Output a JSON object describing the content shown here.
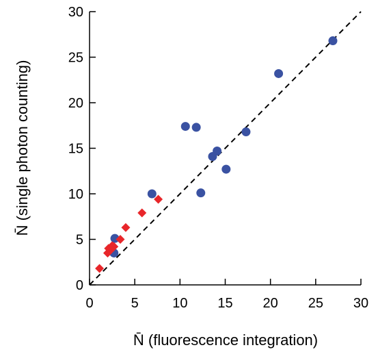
{
  "chart_data": {
    "type": "scatter",
    "xlabel": "N̄ (fluorescence integration)",
    "ylabel": "N̄ (single photon counting)",
    "xlim": [
      0,
      30
    ],
    "ylim": [
      0,
      30
    ],
    "xticks": [
      0,
      5,
      10,
      15,
      20,
      25,
      30
    ],
    "yticks": [
      0,
      5,
      10,
      15,
      20,
      25,
      30
    ],
    "grid": false,
    "reference_line": {
      "type": "y=x",
      "style": "dashed",
      "color": "#000000"
    },
    "series": [
      {
        "marker": "circle",
        "color": "#3a52a2",
        "points": [
          [
            2.7,
            3.5
          ],
          [
            2.8,
            5.1
          ],
          [
            6.9,
            10.0
          ],
          [
            10.6,
            17.4
          ],
          [
            11.8,
            17.3
          ],
          [
            12.3,
            10.1
          ],
          [
            13.6,
            14.1
          ],
          [
            14.1,
            14.7
          ],
          [
            15.1,
            12.7
          ],
          [
            17.3,
            16.8
          ],
          [
            20.9,
            23.2
          ],
          [
            26.9,
            26.8
          ]
        ]
      },
      {
        "marker": "diamond",
        "color": "#e8262a",
        "points": [
          [
            1.1,
            1.8
          ],
          [
            2.0,
            3.5
          ],
          [
            2.1,
            4.0
          ],
          [
            2.3,
            3.8
          ],
          [
            2.5,
            4.3
          ],
          [
            2.7,
            4.2
          ],
          [
            3.4,
            5.0
          ],
          [
            4.0,
            6.3
          ],
          [
            5.8,
            7.9
          ],
          [
            7.6,
            9.4
          ]
        ]
      }
    ]
  }
}
